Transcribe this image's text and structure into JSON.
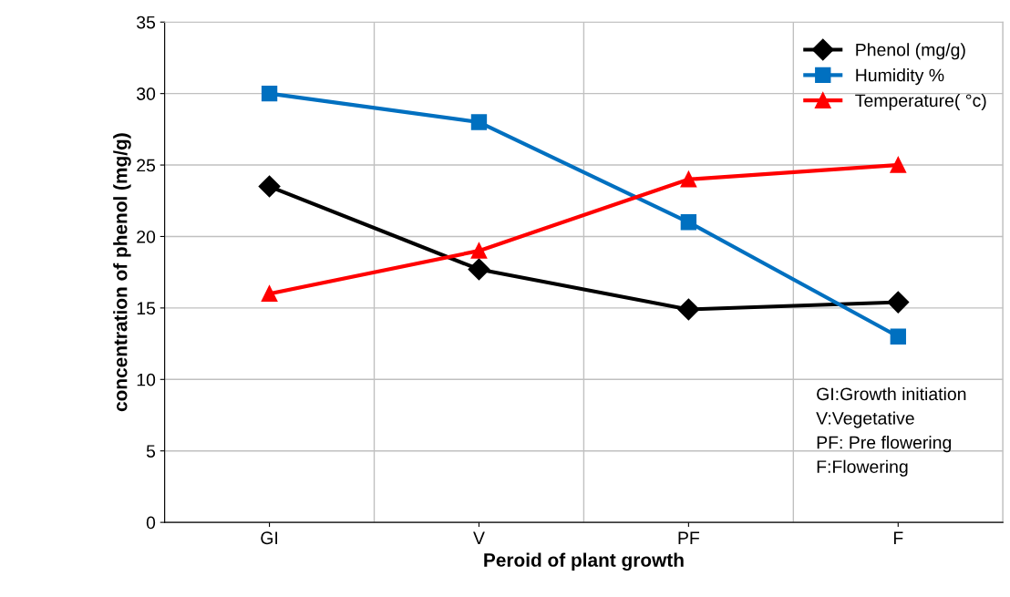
{
  "chart_data": {
    "type": "line",
    "xlabel": "Peroid of plant growth",
    "ylabel": "concentration of phenol (mg/g)",
    "categories": [
      "GI",
      "V",
      "PF",
      "F"
    ],
    "series": [
      {
        "name": "Phenol (mg/g)",
        "color": "#000000",
        "marker": "diamond",
        "values": [
          23.5,
          17.7,
          14.9,
          15.4
        ]
      },
      {
        "name": "Humidity %",
        "color": "#0070c0",
        "marker": "square",
        "values": [
          30,
          28,
          21,
          13
        ]
      },
      {
        "name": "Temperature( °c)",
        "color": "#ff0000",
        "marker": "triangle",
        "values": [
          16,
          19,
          24,
          25
        ]
      }
    ],
    "ylim": [
      0,
      35
    ],
    "yticks": [
      0,
      5,
      10,
      15,
      20,
      25,
      30,
      35
    ],
    "grid": true,
    "legend": "top right",
    "line_style": "solid",
    "annotations": [
      "GI:Growth initiation",
      "V:Vegetative",
      "PF: Pre flowering",
      "F:Flowering"
    ]
  }
}
